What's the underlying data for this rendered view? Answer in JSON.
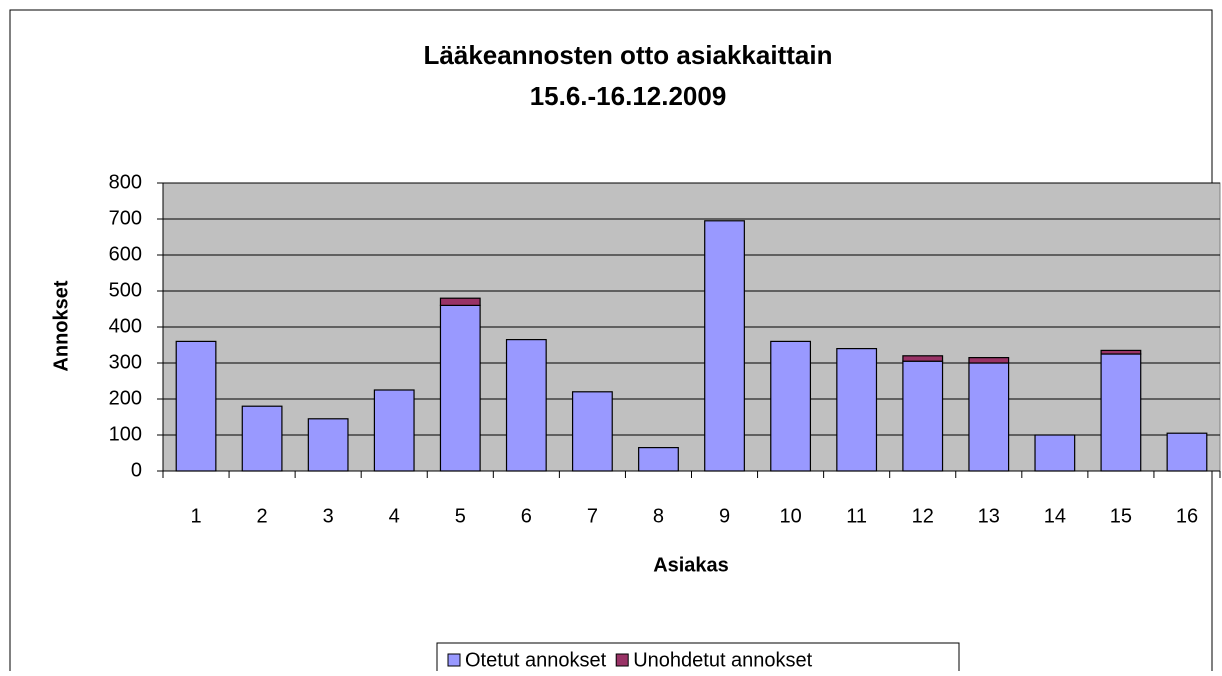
{
  "chart_data": {
    "type": "stacked_bar",
    "title": "Lääkeannosten otto asiakkaittain",
    "subtitle": "15.6.-16.12.2009",
    "x_label": "Asiakas",
    "y_label": "Annokset",
    "categories": [
      "1",
      "2",
      "3",
      "4",
      "5",
      "6",
      "7",
      "8",
      "9",
      "10",
      "11",
      "12",
      "13",
      "14",
      "15",
      "16"
    ],
    "series": [
      {
        "name": "Otetut annokset",
        "color": "#9999ff",
        "values": [
          360,
          180,
          145,
          225,
          460,
          365,
          220,
          65,
          695,
          360,
          340,
          305,
          300,
          100,
          325,
          105
        ]
      },
      {
        "name": "Unohdetut annokset",
        "color": "#993366",
        "values": [
          0,
          0,
          0,
          0,
          20,
          0,
          0,
          0,
          0,
          0,
          0,
          15,
          15,
          0,
          10,
          0
        ]
      }
    ],
    "ylim": [
      0,
      800
    ],
    "yticks": [
      0,
      100,
      200,
      300,
      400,
      500,
      600,
      700,
      800
    ],
    "grid": true,
    "legend": "bottom"
  }
}
